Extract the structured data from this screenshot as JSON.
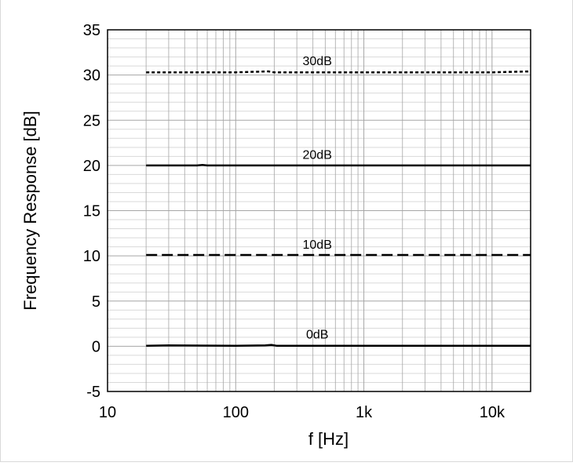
{
  "chart_data": {
    "type": "line",
    "title": "",
    "xlabel": "f [Hz]",
    "ylabel": "Frequency Response  [dB]",
    "xscale": "log",
    "xlim": [
      10,
      20000
    ],
    "ylim": [
      -5,
      35
    ],
    "xticks": [
      {
        "value": 10,
        "label": "10"
      },
      {
        "value": 100,
        "label": "100"
      },
      {
        "value": 1000,
        "label": "1k"
      },
      {
        "value": 10000,
        "label": "10k"
      }
    ],
    "yticks": [
      {
        "value": -5,
        "label": "-5"
      },
      {
        "value": 0,
        "label": "0"
      },
      {
        "value": 5,
        "label": "5"
      },
      {
        "value": 10,
        "label": "10"
      },
      {
        "value": 15,
        "label": "15"
      },
      {
        "value": 20,
        "label": "20"
      },
      {
        "value": 25,
        "label": "25"
      },
      {
        "value": 30,
        "label": "30"
      },
      {
        "value": 35,
        "label": "35"
      }
    ],
    "grid": true,
    "series": [
      {
        "name": "30dB",
        "style": "dotted",
        "label_x": 300,
        "x": [
          20,
          50,
          100,
          180,
          200,
          500,
          1000,
          5000,
          10000,
          20000
        ],
        "y": [
          30.3,
          30.3,
          30.3,
          30.4,
          30.3,
          30.3,
          30.3,
          30.3,
          30.3,
          30.4
        ]
      },
      {
        "name": "20dB",
        "style": "solid",
        "label_x": 300,
        "x": [
          20,
          50,
          55,
          60,
          100,
          200,
          1000,
          10000,
          20000
        ],
        "y": [
          20.0,
          20.0,
          20.05,
          20.0,
          20.0,
          20.0,
          20.0,
          20.0,
          20.0
        ]
      },
      {
        "name": "10dB",
        "style": "dashed",
        "label_x": 300,
        "x": [
          20,
          50,
          100,
          200,
          1000,
          10000,
          20000
        ],
        "y": [
          10.1,
          10.1,
          10.1,
          10.1,
          10.1,
          10.1,
          10.1
        ]
      },
      {
        "name": "0dB",
        "style": "solid",
        "label_x": 300,
        "x": [
          20,
          30,
          100,
          170,
          190,
          210,
          1000,
          10000,
          20000
        ],
        "y": [
          0.05,
          0.1,
          0.05,
          0.1,
          0.15,
          0.05,
          0.05,
          0.05,
          0.05
        ]
      }
    ],
    "colors": {
      "line": "#000000",
      "major_grid": "#a6a6a6",
      "minor_grid": "#d9d9d9",
      "frame": "#000000"
    }
  }
}
